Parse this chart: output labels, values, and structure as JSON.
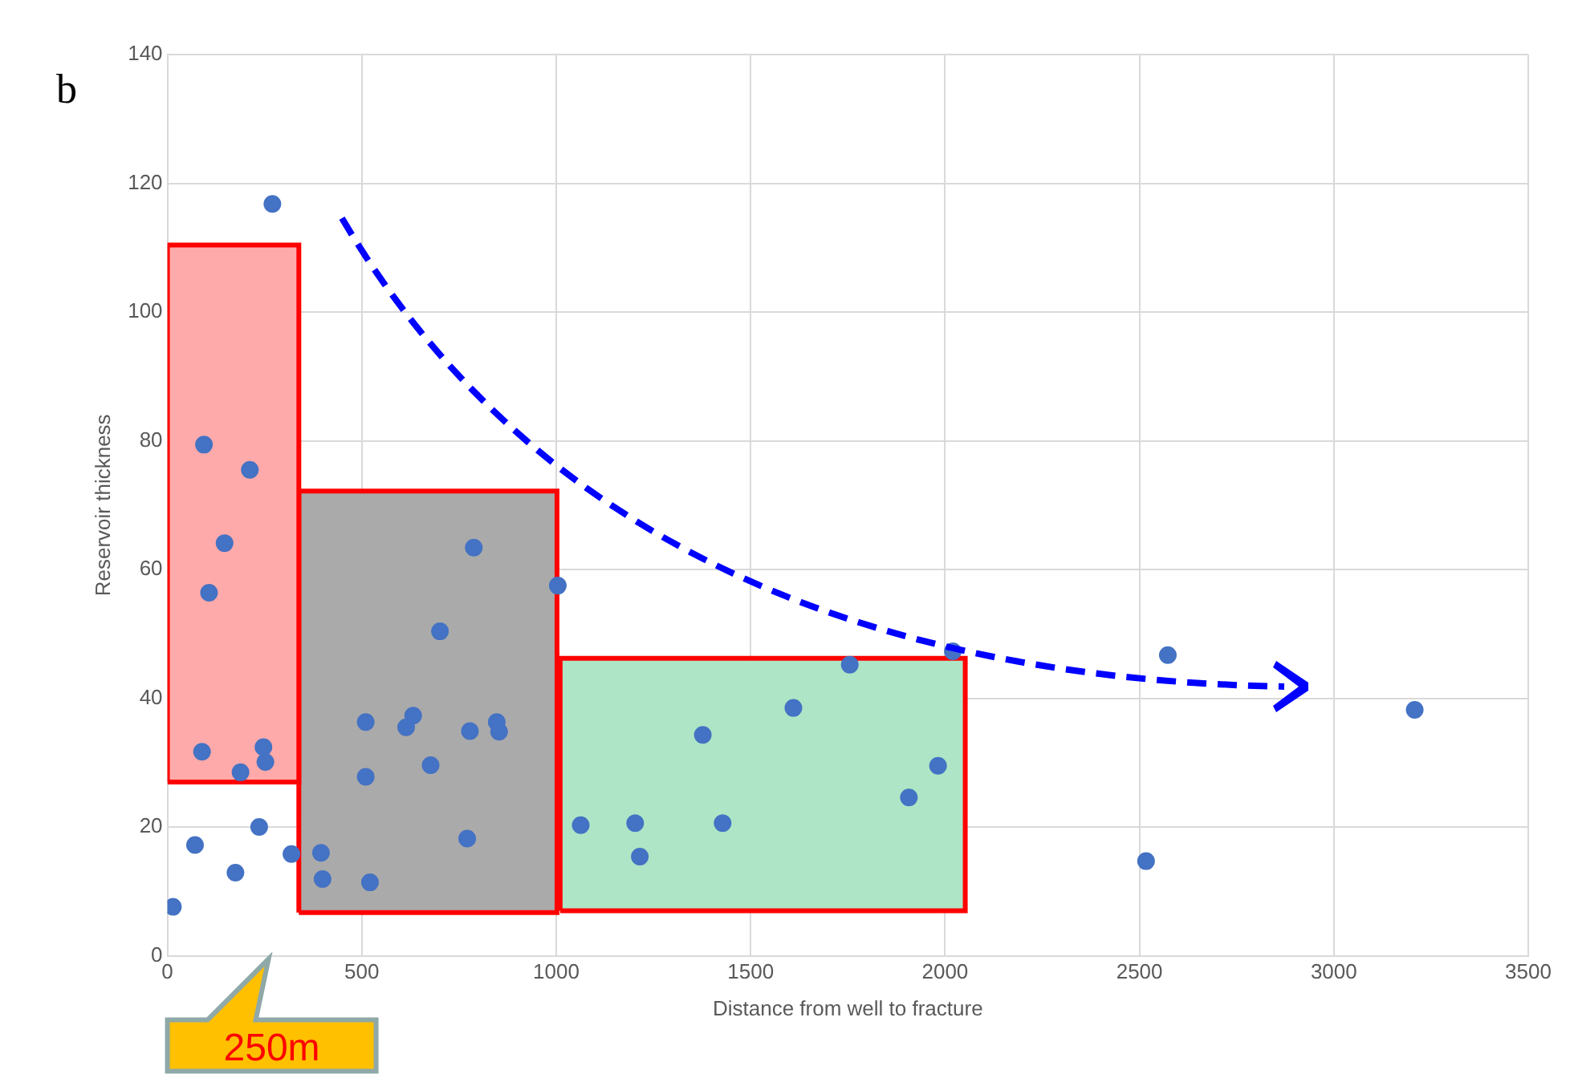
{
  "chart_data": {
    "type": "scatter",
    "title": "b",
    "xlabel": "Distance from well to fracture",
    "ylabel": "Reservoir thickness",
    "xlim": [
      0,
      3500
    ],
    "xticks": [
      0,
      500,
      1000,
      1500,
      2000,
      2500,
      3000,
      3500
    ],
    "ylim": [
      0,
      140
    ],
    "yticks": [
      0,
      20,
      40,
      60,
      80,
      100,
      120,
      140
    ],
    "grid": true,
    "series": [
      {
        "type": "area",
        "color": "#ffaaaa",
        "x": [
          0,
          0,
          338,
          338,
          0
        ],
        "values": [
          27,
          110.4,
          110.4,
          27,
          27
        ]
      },
      {
        "type": "area",
        "color": "#aaaaaa",
        "x": [
          338,
          338,
          1002,
          1002,
          338
        ],
        "values": [
          6.7,
          72.2,
          72.2,
          6.7,
          6.7
        ]
      },
      {
        "type": "area",
        "color": "#ade5c6",
        "x": [
          1010,
          1010,
          2052,
          2052,
          1010
        ],
        "values": [
          7,
          46.2,
          46.2,
          7,
          7
        ]
      },
      {
        "color": "#4472c4",
        "x": [
          14,
          71,
          175,
          236,
          270,
          319,
          94,
          212,
          147,
          107,
          89,
          247,
          252,
          188,
          395,
          399,
          521,
          510,
          510,
          614,
          632,
          778,
          847,
          853,
          677,
          701,
          788,
          771,
          1004,
          1063,
          1203,
          1215,
          1428,
          1377,
          1610,
          1755,
          1907,
          1982,
          2020,
          2573,
          2517,
          3208
        ],
        "values": [
          7.6,
          17.2,
          12.9,
          20,
          116.8,
          15.8,
          79.4,
          75.5,
          64.1,
          56.4,
          31.7,
          32.4,
          30.1,
          28.5,
          16,
          11.9,
          11.4,
          27.8,
          36.3,
          35.5,
          37.3,
          34.9,
          36.3,
          34.8,
          29.6,
          50.4,
          63.4,
          18.2,
          57.5,
          20.3,
          20.6,
          15.4,
          20.6,
          34.3,
          38.5,
          45.2,
          24.6,
          29.5,
          47.3,
          46.7,
          14.7,
          38.2
        ]
      }
    ],
    "annotations": [
      "250m"
    ]
  }
}
